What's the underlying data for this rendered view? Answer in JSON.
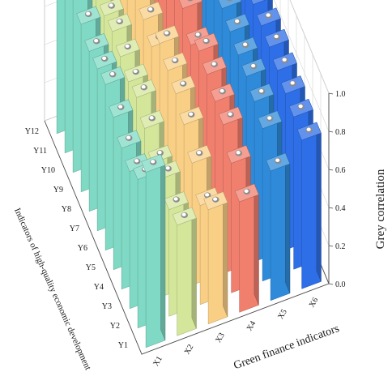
{
  "chart_data": {
    "type": "bar3d",
    "xlabel": "Green finance indicators",
    "ylabel": "Indicators of high-quality economic development",
    "zlabel": "Grey correlation",
    "x_categories": [
      "X1",
      "X2",
      "X3",
      "X4",
      "X5",
      "X6"
    ],
    "y_categories": [
      "Y1",
      "Y2",
      "Y3",
      "Y4",
      "Y5",
      "Y6",
      "Y7",
      "Y8",
      "Y9",
      "Y10",
      "Y11",
      "Y12"
    ],
    "zlim": [
      0,
      1.0
    ],
    "z_ticks": [
      "0.0",
      "0.2",
      "0.4",
      "0.6",
      "0.8",
      "1.0"
    ],
    "grid": true,
    "series_colors": [
      "#7fd9c4",
      "#d4e69a",
      "#f9cf86",
      "#f07f6e",
      "#2f8bd9",
      "#2e6ee6"
    ],
    "series": [
      {
        "x": "X1",
        "values": [
          0.92,
          0.78,
          0.72,
          0.74,
          0.8,
          0.87,
          0.85,
          0.84,
          0.88,
          0.91,
          0.92,
          0.81
        ]
      },
      {
        "x": "X2",
        "values": [
          0.58,
          0.56,
          0.62,
          0.6,
          0.68,
          0.74,
          0.72,
          0.75,
          0.78,
          0.76,
          0.8,
          0.78
        ]
      },
      {
        "x": "X3",
        "values": [
          0.6,
          0.52,
          0.64,
          0.74,
          0.8,
          0.82,
          0.86,
          0.74,
          0.78,
          0.88,
          0.94,
          0.82
        ]
      },
      {
        "x": "X4",
        "values": [
          0.58,
          0.68,
          0.78,
          0.8,
          0.84,
          0.86,
          0.79,
          0.88,
          0.93,
          0.97,
          1.0,
          0.86
        ]
      },
      {
        "x": "X5",
        "values": [
          0.68,
          0.8,
          0.84,
          0.87,
          0.88,
          0.9,
          0.92,
          0.93,
          0.91,
          0.94,
          0.97,
          0.99
        ]
      },
      {
        "x": "X6",
        "values": [
          0.78,
          0.8,
          0.82,
          0.84,
          0.86,
          0.87,
          0.88,
          0.89,
          0.9,
          0.91,
          0.92,
          0.93
        ]
      }
    ]
  }
}
